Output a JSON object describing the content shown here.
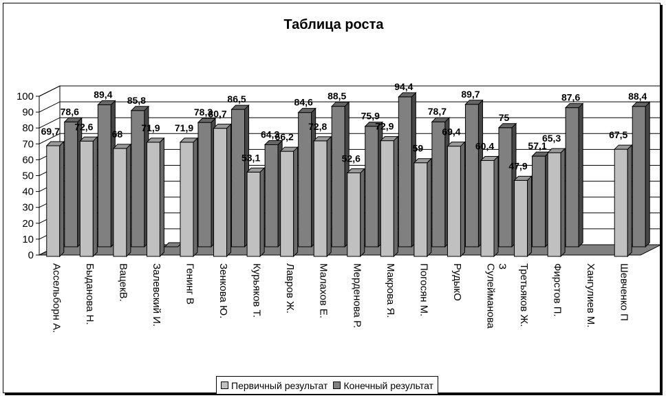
{
  "chart_data": {
    "type": "bar",
    "title": "Таблица роста",
    "categories": [
      "Ассельборн А.",
      "Быданова Н.",
      "ВацекВ.",
      "Залевский И.",
      "Генинг В",
      "Зенкова Ю.",
      "Курьяков Т.",
      "Лавров Ж.",
      "Малахов Е.",
      "Мерденова Р.",
      "Макрова Я.",
      "Погосян М.",
      "РудыкО",
      "Сулейманова З",
      "Третьяков Ж.",
      "Фирстов П.",
      "Хангулиев М.",
      "Шевченко П"
    ],
    "series": [
      {
        "name": "Первичный результат",
        "color": "#c0c0c0",
        "values": [
          69.7,
          72.6,
          68,
          71.9,
          71.9,
          80.7,
          53.1,
          66.2,
          72.8,
          52.6,
          72.9,
          59,
          69.4,
          60.4,
          47.9,
          65.3,
          null,
          67.5
        ],
        "labels": [
          "69,7",
          "72,6",
          "68",
          "71,9",
          "71,9",
          "80,7",
          "53,1",
          "66,2",
          "72,8",
          "52,6",
          "72,9",
          "59",
          "69,4",
          "60,4",
          "47,9",
          "65,3",
          "",
          "67,5"
        ]
      },
      {
        "name": "Конечный результат",
        "color": "#808080",
        "values": [
          78.6,
          89.4,
          85.8,
          0,
          78.3,
          86.5,
          64.3,
          84.6,
          88.5,
          75.9,
          94.4,
          78.7,
          89.7,
          75,
          57.1,
          87.6,
          null,
          88.4
        ],
        "labels": [
          "78,6",
          "89,4",
          "85,8",
          "",
          "78,3",
          "86,5",
          "64,3",
          "84,6",
          "88,5",
          "75,9",
          "94,4",
          "78,7",
          "89,7",
          "75",
          "57,1",
          "87,6",
          "",
          "88,4"
        ]
      }
    ],
    "yticks": [
      "0",
      "10",
      "20",
      "30",
      "40",
      "50",
      "60",
      "70",
      "80",
      "90",
      "100"
    ],
    "ylim": [
      0,
      100
    ],
    "grid": true,
    "legend_position": "bottom"
  }
}
